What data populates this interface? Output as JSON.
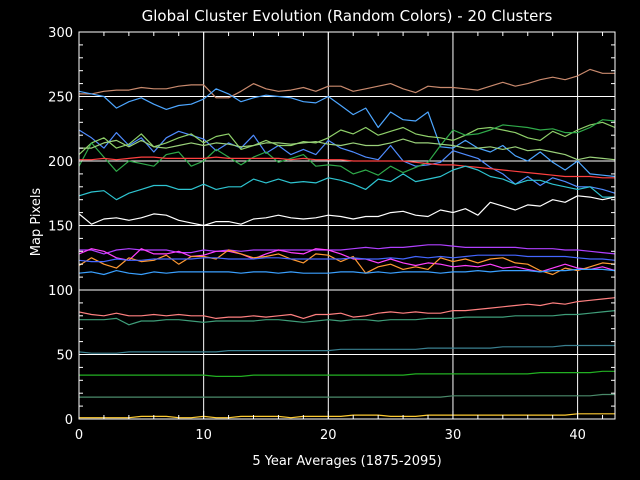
{
  "chart_data": {
    "type": "line",
    "title": "Global Cluster Evolution (Random Colors) - 20 Clusters",
    "xlabel": "5 Year Averages (1875-2095)",
    "ylabel": "Map Pixels",
    "xlim": [
      0,
      43
    ],
    "ylim": [
      0,
      300
    ],
    "x_ticks": [
      0,
      10,
      20,
      30,
      40
    ],
    "y_ticks": [
      0,
      50,
      100,
      150,
      200,
      250,
      300
    ],
    "grid": true,
    "colors": {
      "background": "#000000",
      "axes": "#ffffff",
      "grid": "#ffffff"
    },
    "series": [
      {
        "color": "#c98a6e",
        "values": [
          252,
          252,
          254,
          255,
          255,
          257,
          256,
          256,
          258,
          259,
          259,
          249,
          249,
          254,
          260,
          256,
          254,
          255,
          257,
          254,
          258,
          258,
          254,
          256,
          258,
          260,
          256,
          253,
          258,
          257,
          257,
          256,
          255,
          258,
          261,
          258,
          260,
          263,
          265,
          263,
          266,
          271,
          268,
          268
        ]
      },
      {
        "color": "#4da6ff",
        "values": [
          254,
          252,
          250,
          241,
          246,
          249,
          244,
          240,
          243,
          244,
          248,
          256,
          252,
          246,
          249,
          251,
          250,
          249,
          246,
          245,
          250,
          243,
          236,
          241,
          226,
          238,
          232,
          231,
          238,
          211,
          210,
          216,
          210,
          207,
          212,
          204,
          200,
          207,
          199,
          193,
          200,
          190,
          189,
          188
        ]
      },
      {
        "color": "#4f8cff",
        "values": [
          224,
          218,
          210,
          222,
          212,
          218,
          207,
          218,
          223,
          220,
          217,
          208,
          214,
          210,
          220,
          206,
          212,
          205,
          209,
          205,
          216,
          210,
          207,
          203,
          201,
          212,
          200,
          196,
          197,
          199,
          208,
          205,
          202,
          195,
          190,
          182,
          188,
          181,
          187,
          184,
          180,
          180,
          178,
          175
        ]
      },
      {
        "color": "#8fd06a",
        "values": [
          205,
          214,
          218,
          210,
          213,
          221,
          211,
          214,
          218,
          221,
          214,
          219,
          221,
          209,
          212,
          216,
          212,
          212,
          215,
          214,
          218,
          224,
          221,
          226,
          220,
          223,
          226,
          221,
          219,
          218,
          216,
          220,
          225,
          226,
          224,
          222,
          218,
          216,
          223,
          219,
          224,
          228,
          230,
          226
        ]
      },
      {
        "color": "#2faa4a",
        "values": [
          196,
          214,
          203,
          192,
          200,
          198,
          196,
          205,
          207,
          196,
          200,
          209,
          203,
          197,
          203,
          207,
          199,
          202,
          205,
          196,
          197,
          196,
          190,
          193,
          189,
          196,
          191,
          195,
          199,
          212,
          224,
          220,
          221,
          224,
          228,
          227,
          226,
          224,
          225,
          222,
          222,
          226,
          232,
          231
        ]
      },
      {
        "color": "#9ad07a",
        "values": [
          210,
          210,
          214,
          216,
          211,
          216,
          211,
          210,
          212,
          214,
          212,
          214,
          213,
          211,
          212,
          214,
          214,
          213,
          214,
          215,
          213,
          212,
          214,
          212,
          212,
          214,
          217,
          214,
          214,
          213,
          212,
          210,
          210,
          211,
          209,
          211,
          208,
          209,
          207,
          205,
          201,
          203,
          202,
          201
        ]
      },
      {
        "color": "#ff4040",
        "values": [
          201,
          201,
          202,
          201,
          202,
          203,
          203,
          202,
          202,
          202,
          202,
          203,
          202,
          202,
          202,
          202,
          202,
          201,
          202,
          201,
          201,
          201,
          200,
          200,
          200,
          200,
          200,
          199,
          198,
          197,
          197,
          196,
          195,
          194,
          193,
          192,
          191,
          190,
          189,
          188,
          188,
          188,
          187,
          187
        ]
      },
      {
        "color": "#2ec4d0",
        "values": [
          173,
          176,
          177,
          170,
          175,
          178,
          181,
          181,
          178,
          178,
          182,
          178,
          180,
          180,
          186,
          183,
          186,
          183,
          184,
          183,
          187,
          185,
          182,
          178,
          186,
          184,
          190,
          184,
          186,
          188,
          193,
          196,
          193,
          188,
          186,
          182,
          185,
          185,
          182,
          180,
          178,
          180,
          172,
          172
        ]
      },
      {
        "color": "#ffffff",
        "values": [
          159,
          151,
          155,
          156,
          154,
          156,
          159,
          158,
          154,
          152,
          150,
          153,
          153,
          151,
          155,
          156,
          158,
          156,
          155,
          156,
          158,
          157,
          155,
          157,
          157,
          160,
          161,
          158,
          157,
          162,
          160,
          163,
          158,
          168,
          165,
          162,
          166,
          165,
          170,
          168,
          173,
          172,
          170,
          172
        ]
      },
      {
        "color": "#b040ff",
        "values": [
          131,
          131,
          128,
          131,
          132,
          131,
          131,
          131,
          129,
          129,
          131,
          130,
          131,
          130,
          131,
          131,
          131,
          131,
          131,
          131,
          131,
          131,
          132,
          133,
          132,
          133,
          133,
          134,
          135,
          135,
          134,
          133,
          133,
          133,
          133,
          133,
          132,
          132,
          132,
          131,
          131,
          130,
          129,
          128
        ]
      },
      {
        "color": "#ff40ff",
        "values": [
          128,
          132,
          130,
          125,
          123,
          132,
          128,
          128,
          130,
          126,
          127,
          130,
          130,
          128,
          124,
          128,
          131,
          129,
          128,
          132,
          131,
          128,
          124,
          124,
          121,
          124,
          121,
          119,
          121,
          120,
          118,
          119,
          118,
          120,
          117,
          118,
          116,
          114,
          117,
          120,
          117,
          116,
          118,
          115
        ]
      },
      {
        "color": "#ff9933",
        "values": [
          119,
          125,
          120,
          117,
          125,
          122,
          123,
          127,
          120,
          126,
          126,
          124,
          131,
          128,
          125,
          126,
          128,
          124,
          121,
          128,
          127,
          122,
          126,
          113,
          118,
          120,
          116,
          118,
          116,
          125,
          122,
          124,
          121,
          124,
          125,
          121,
          120,
          115,
          112,
          117,
          115,
          118,
          121,
          120
        ]
      },
      {
        "color": "#4466ff",
        "values": [
          123,
          122,
          122,
          124,
          123,
          123,
          124,
          124,
          124,
          124,
          125,
          125,
          124,
          124,
          124,
          125,
          125,
          124,
          124,
          124,
          124,
          124,
          125,
          124,
          124,
          125,
          124,
          126,
          125,
          126,
          125,
          126,
          127,
          127,
          127,
          127,
          126,
          126,
          126,
          126,
          125,
          124,
          124,
          123
        ]
      },
      {
        "color": "#3aa0ff",
        "values": [
          113,
          114,
          112,
          115,
          113,
          112,
          114,
          113,
          114,
          114,
          114,
          114,
          114,
          113,
          114,
          114,
          113,
          114,
          113,
          113,
          113,
          114,
          114,
          113,
          114,
          113,
          114,
          114,
          114,
          113,
          114,
          114,
          115,
          114,
          115,
          115,
          115,
          114,
          115,
          115,
          116,
          116,
          116,
          115
        ]
      },
      {
        "color": "#ff8080",
        "values": [
          83,
          81,
          80,
          82,
          80,
          80,
          81,
          80,
          81,
          80,
          80,
          78,
          79,
          79,
          80,
          79,
          80,
          81,
          78,
          81,
          81,
          82,
          79,
          80,
          82,
          83,
          82,
          83,
          82,
          82,
          84,
          84,
          85,
          86,
          87,
          88,
          89,
          88,
          90,
          89,
          91,
          92,
          93,
          94
        ]
      },
      {
        "color": "#3f9e7a",
        "values": [
          77,
          77,
          77,
          78,
          73,
          76,
          76,
          77,
          77,
          76,
          75,
          76,
          76,
          76,
          76,
          77,
          77,
          76,
          75,
          76,
          77,
          76,
          77,
          77,
          76,
          77,
          77,
          77,
          78,
          78,
          78,
          79,
          79,
          79,
          79,
          80,
          80,
          80,
          80,
          81,
          81,
          82,
          83,
          84
        ]
      },
      {
        "color": "#3a8090",
        "values": [
          52,
          51,
          51,
          51,
          52,
          52,
          52,
          52,
          52,
          52,
          52,
          52,
          53,
          53,
          53,
          53,
          53,
          53,
          53,
          53,
          53,
          54,
          54,
          54,
          54,
          54,
          54,
          54,
          55,
          55,
          55,
          55,
          55,
          55,
          56,
          56,
          56,
          56,
          56,
          57,
          57,
          57,
          57,
          57
        ]
      },
      {
        "color": "#22b022",
        "values": [
          34,
          34,
          34,
          34,
          34,
          34,
          34,
          34,
          34,
          34,
          34,
          33,
          33,
          33,
          34,
          34,
          34,
          34,
          34,
          34,
          34,
          34,
          34,
          34,
          34,
          34,
          34,
          35,
          35,
          35,
          35,
          35,
          35,
          35,
          35,
          35,
          35,
          36,
          36,
          36,
          36,
          36,
          37,
          37
        ]
      },
      {
        "color": "#4a8a6a",
        "values": [
          17,
          17,
          17,
          17,
          17,
          17,
          17,
          17,
          17,
          17,
          17,
          17,
          17,
          17,
          17,
          17,
          17,
          17,
          17,
          17,
          17,
          17,
          17,
          17,
          17,
          17,
          17,
          17,
          17,
          17,
          18,
          18,
          18,
          18,
          18,
          18,
          18,
          18,
          18,
          18,
          18,
          18,
          19,
          19
        ]
      },
      {
        "color": "#ffcc33",
        "values": [
          1,
          1,
          1,
          1,
          1,
          2,
          2,
          2,
          1,
          1,
          2,
          1,
          1,
          2,
          2,
          2,
          2,
          1,
          2,
          2,
          2,
          2,
          3,
          3,
          3,
          2,
          2,
          2,
          3,
          3,
          3,
          3,
          3,
          3,
          3,
          3,
          3,
          3,
          3,
          3,
          4,
          4,
          4,
          4
        ]
      }
    ]
  }
}
